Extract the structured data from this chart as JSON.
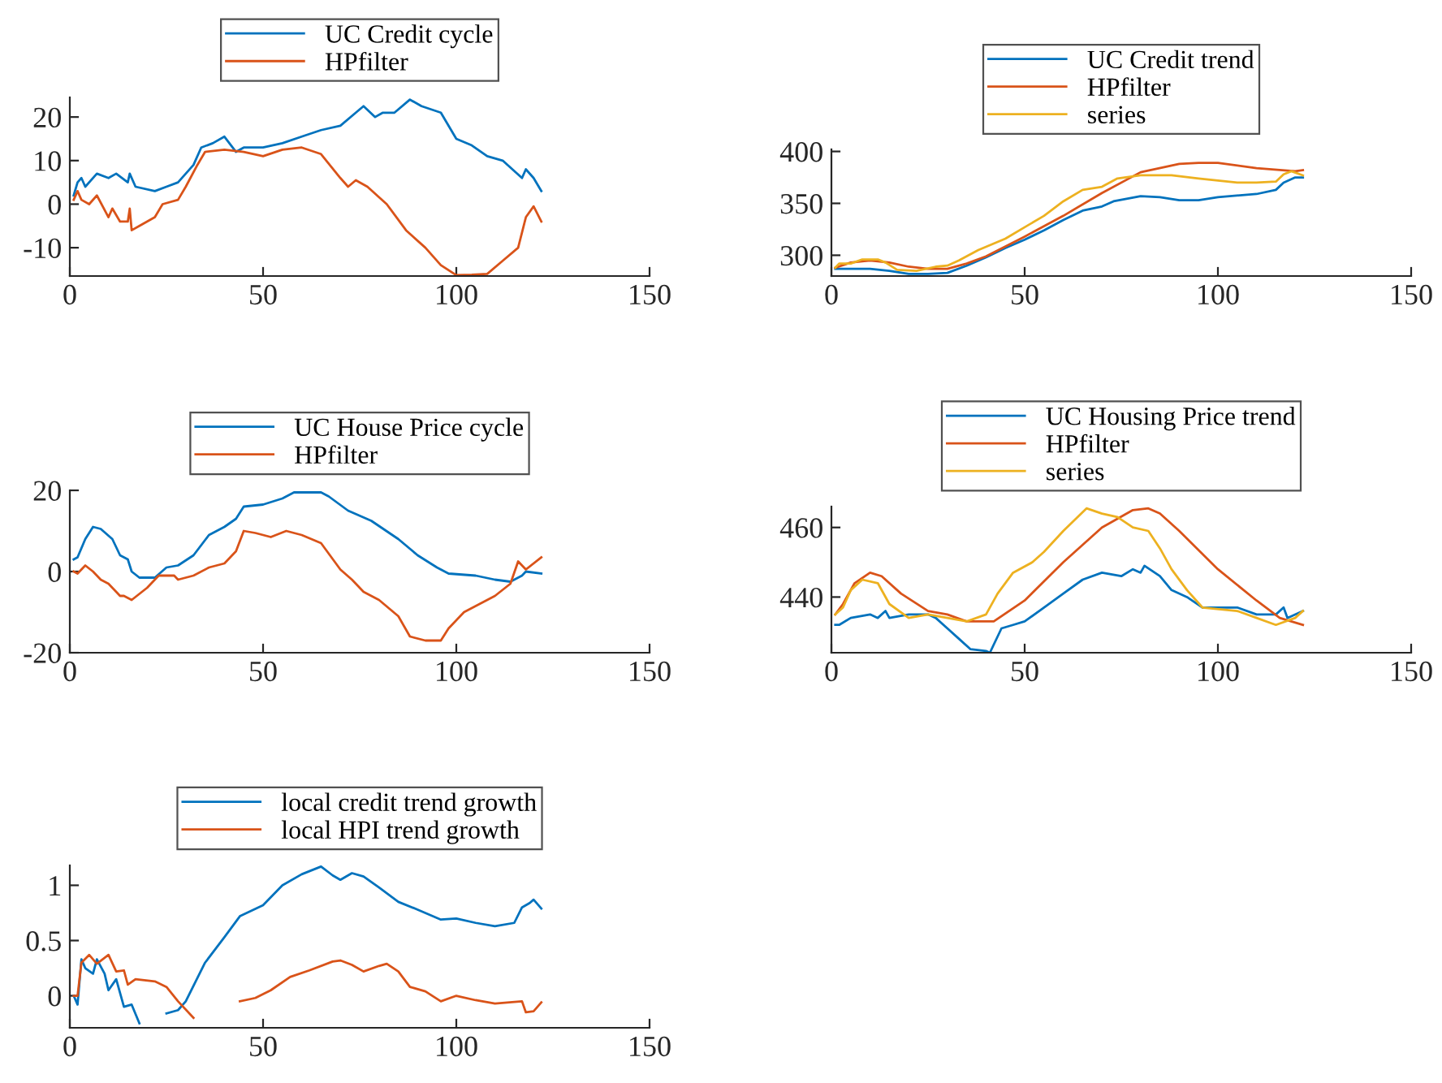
{
  "chart_data": [
    {
      "type": "line",
      "xlim": [
        0,
        150
      ],
      "ylim": [
        -16.5,
        24.5
      ],
      "xticks": [
        0,
        50,
        100,
        150
      ],
      "yticks": [
        -10,
        0,
        10,
        20
      ],
      "legend": "top",
      "series": [
        {
          "name": "UC Credit cycle",
          "color": "#0072bd",
          "x": [
            1,
            2,
            3,
            4,
            7,
            10,
            12,
            15,
            15.5,
            17,
            22,
            25,
            28,
            30,
            32,
            34,
            37,
            40,
            43,
            45,
            50,
            55,
            60,
            65,
            70,
            74,
            76,
            79,
            81,
            84,
            88,
            91,
            96,
            100,
            104,
            108,
            112,
            117,
            118,
            120,
            122
          ],
          "values": [
            2,
            5,
            6,
            4,
            7,
            6,
            7,
            5,
            7,
            4,
            3,
            4,
            5,
            7,
            9,
            13,
            14,
            15.5,
            12,
            13,
            13,
            14,
            15.5,
            17,
            18,
            21,
            22.5,
            20,
            21,
            21,
            24,
            22.5,
            21,
            15,
            13.5,
            11,
            10,
            6,
            8,
            6,
            3
          ]
        },
        {
          "name": "HPfilter",
          "color": "#d95319",
          "x": [
            1,
            2,
            3,
            5,
            7,
            10,
            11,
            13,
            15,
            15.5,
            16,
            18,
            22,
            24,
            28,
            30,
            33,
            35,
            40,
            45,
            50,
            55,
            60,
            65,
            70,
            72,
            74,
            77,
            82,
            87,
            92,
            96,
            100,
            104,
            108,
            112,
            116,
            118,
            120,
            122
          ],
          "values": [
            1,
            3,
            1,
            0,
            2,
            -3,
            -1,
            -4,
            -4,
            -1,
            -6,
            -5,
            -3,
            0,
            1,
            4,
            9,
            12,
            12.5,
            12,
            11,
            12.5,
            13,
            11.5,
            6,
            4,
            5.5,
            4,
            0,
            -6,
            -10,
            -14,
            -16.3,
            -16.2,
            -16,
            -13,
            -10,
            -3,
            -0.5,
            -4
          ]
        }
      ]
    },
    {
      "type": "line",
      "xlim": [
        0,
        150
      ],
      "ylim": [
        280,
        402
      ],
      "xticks": [
        0,
        50,
        100,
        150
      ],
      "yticks": [
        300,
        350,
        400
      ],
      "legend": "top",
      "series": [
        {
          "name": "UC Credit trend",
          "color": "#0072bd",
          "x": [
            1,
            10,
            15,
            20,
            25,
            30,
            35,
            40,
            45,
            50,
            55,
            60,
            65,
            70,
            73,
            80,
            85,
            90,
            95,
            100,
            110,
            115,
            117,
            120,
            122
          ],
          "values": [
            287,
            287,
            285,
            282,
            282,
            283,
            290,
            298,
            307,
            315,
            324,
            334,
            343,
            347,
            352,
            357,
            356,
            353,
            353,
            356,
            359,
            363,
            370,
            375,
            375
          ]
        },
        {
          "name": "HPfilter",
          "color": "#d95319",
          "x": [
            1,
            5,
            10,
            15,
            20,
            25,
            30,
            35,
            40,
            50,
            60,
            70,
            80,
            90,
            95,
            100,
            110,
            120,
            122
          ],
          "values": [
            288,
            293,
            295,
            293,
            289,
            287,
            287,
            292,
            299,
            318,
            338,
            360,
            380,
            388,
            389,
            389,
            384,
            381,
            382
          ]
        },
        {
          "name": "series",
          "color": "#edb120",
          "x": [
            1,
            2,
            5,
            8,
            12,
            14,
            17,
            22,
            27,
            30,
            33,
            38,
            45,
            50,
            55,
            60,
            65,
            70,
            74,
            80,
            88,
            95,
            105,
            110,
            115,
            117,
            119,
            122
          ],
          "values": [
            288,
            292,
            292,
            296,
            296,
            293,
            286,
            285,
            289,
            290,
            295,
            305,
            316,
            327,
            338,
            352,
            363,
            366,
            374,
            377,
            377,
            374,
            370,
            370,
            371,
            378,
            381,
            377
          ]
        }
      ]
    },
    {
      "type": "line",
      "xlim": [
        0,
        150
      ],
      "ylim": [
        -20,
        20
      ],
      "xticks": [
        0,
        50,
        100,
        150
      ],
      "yticks": [
        -20,
        0,
        20
      ],
      "legend": "top",
      "series": [
        {
          "name": "UC House Price cycle",
          "color": "#0072bd",
          "x": [
            1,
            2,
            4,
            6,
            8,
            11,
            13,
            15,
            16,
            18,
            22,
            25,
            28,
            32,
            36,
            40,
            43,
            45,
            50,
            55,
            58,
            65,
            67,
            72,
            78,
            85,
            90,
            95,
            98,
            105,
            110,
            114,
            117,
            118,
            122
          ],
          "values": [
            3,
            3.5,
            8,
            11,
            10.5,
            8,
            4,
            3,
            0,
            -1.5,
            -1.5,
            1,
            1.5,
            4,
            9,
            11,
            13,
            16,
            16.5,
            18,
            19.5,
            19.5,
            18.5,
            15,
            12.5,
            8,
            4,
            1,
            -0.5,
            -1,
            -2,
            -2.5,
            -1,
            0,
            -0.5
          ]
        },
        {
          "name": "HPfilter",
          "color": "#d95319",
          "x": [
            1,
            2,
            4,
            6,
            8,
            10,
            13,
            14,
            16,
            20,
            23,
            27,
            28,
            32,
            36,
            40,
            43,
            45,
            48,
            52,
            56,
            60,
            65,
            70,
            73,
            76,
            80,
            85,
            88,
            92,
            96,
            98,
            102,
            106,
            110,
            114,
            116,
            118,
            122
          ],
          "values": [
            0,
            -0.5,
            1.5,
            0,
            -2,
            -3,
            -6,
            -6,
            -7,
            -4,
            -1,
            -1,
            -2,
            -1,
            1,
            2,
            5,
            10,
            9.5,
            8.5,
            10,
            9,
            7,
            0.5,
            -2,
            -5,
            -7,
            -11,
            -16,
            -17,
            -17,
            -14,
            -10,
            -8,
            -6,
            -3,
            2.5,
            0.5,
            3.5
          ]
        }
      ]
    },
    {
      "type": "line",
      "xlim": [
        0,
        150
      ],
      "ylim": [
        424,
        466
      ],
      "xticks": [
        0,
        50,
        100,
        150
      ],
      "yticks": [
        440,
        460
      ],
      "legend": "top",
      "series": [
        {
          "name": "UC Housing Price trend",
          "color": "#0072bd",
          "x": [
            1,
            2,
            5,
            10,
            12,
            14,
            15,
            20,
            25,
            27,
            30,
            33,
            36,
            40,
            41,
            44,
            47,
            50,
            55,
            60,
            65,
            70,
            75,
            78,
            80,
            81,
            85,
            88,
            92,
            96,
            100,
            105,
            110,
            115,
            117,
            118,
            122
          ],
          "values": [
            432,
            432,
            434,
            435,
            434,
            436,
            434,
            435,
            435,
            434,
            431,
            428,
            425,
            424.5,
            424,
            431,
            432,
            433,
            437,
            441,
            445,
            447,
            446,
            448,
            447,
            449,
            446,
            442,
            440,
            437,
            437,
            437,
            435,
            435,
            437,
            434,
            436
          ]
        },
        {
          "name": "HPfilter",
          "color": "#d95319",
          "x": [
            1,
            3,
            6,
            10,
            13,
            18,
            25,
            30,
            35,
            42,
            50,
            60,
            70,
            78,
            82,
            85,
            90,
            100,
            110,
            116,
            122
          ],
          "values": [
            435,
            438,
            444,
            447,
            446,
            441,
            436,
            435,
            433,
            433,
            439,
            450,
            460,
            465,
            465.5,
            464,
            459,
            448,
            439,
            434,
            432
          ]
        },
        {
          "name": "series",
          "color": "#edb120",
          "x": [
            1,
            3,
            5,
            8,
            12,
            15,
            20,
            25,
            30,
            35,
            40,
            43,
            47,
            52,
            55,
            60,
            66,
            70,
            74,
            78,
            82,
            85,
            88,
            92,
            96,
            105,
            110,
            115,
            120,
            122
          ],
          "values": [
            435,
            437,
            442,
            445,
            444,
            438,
            434,
            435,
            434,
            433,
            435,
            441,
            447,
            450,
            453,
            459,
            465.5,
            464,
            463,
            460,
            459,
            454,
            448,
            442,
            437,
            436,
            434,
            432,
            434,
            436
          ]
        }
      ]
    },
    {
      "type": "line",
      "xlim": [
        0,
        150
      ],
      "ylim": [
        -0.29,
        1.18
      ],
      "xticks": [
        0,
        50,
        100,
        150
      ],
      "yticks": [
        0,
        0.5,
        1
      ],
      "legend": "top",
      "series": [
        {
          "name": "local credit trend growth",
          "color": "#0072bd",
          "x": [
            1,
            2,
            3,
            4,
            6,
            7,
            9,
            10,
            12,
            14,
            16,
            18,
            22,
            25,
            28,
            30,
            35,
            40,
            44,
            50,
            55,
            60,
            65,
            68,
            70,
            73,
            76,
            80,
            85,
            90,
            96,
            100,
            105,
            110,
            115,
            117,
            119,
            120,
            122
          ],
          "values": [
            0,
            -0.08,
            0.33,
            0.25,
            0.2,
            0.33,
            0.2,
            0.05,
            0.15,
            -0.1,
            -0.08,
            -0.25,
            null,
            -0.16,
            -0.13,
            -0.05,
            0.3,
            0.53,
            0.72,
            0.82,
            1.0,
            1.1,
            1.17,
            1.09,
            1.05,
            1.11,
            1.08,
            0.98,
            0.85,
            0.78,
            0.69,
            0.7,
            0.66,
            0.63,
            0.66,
            0.8,
            0.84,
            0.87,
            0.79
          ]
        },
        {
          "name": "local HPI trend growth",
          "color": "#d95319",
          "x": [
            1,
            2,
            3,
            5,
            7,
            10,
            12,
            14,
            15,
            17,
            22,
            25,
            28,
            32,
            35,
            41,
            44,
            48,
            52,
            57,
            62,
            68,
            70,
            73,
            76,
            80,
            82,
            85,
            88,
            92,
            96,
            100,
            105,
            110,
            117,
            118,
            120,
            122
          ],
          "values": [
            0,
            0,
            0.3,
            0.37,
            0.29,
            0.37,
            0.22,
            0.23,
            0.1,
            0.15,
            0.13,
            0.08,
            -0.05,
            -0.2,
            null,
            null,
            -0.05,
            -0.02,
            0.05,
            0.17,
            0.23,
            0.31,
            0.32,
            0.28,
            0.22,
            0.27,
            0.29,
            0.22,
            0.08,
            0.04,
            -0.05,
            0,
            -0.04,
            -0.07,
            -0.05,
            -0.15,
            -0.14,
            -0.06
          ]
        }
      ]
    }
  ]
}
